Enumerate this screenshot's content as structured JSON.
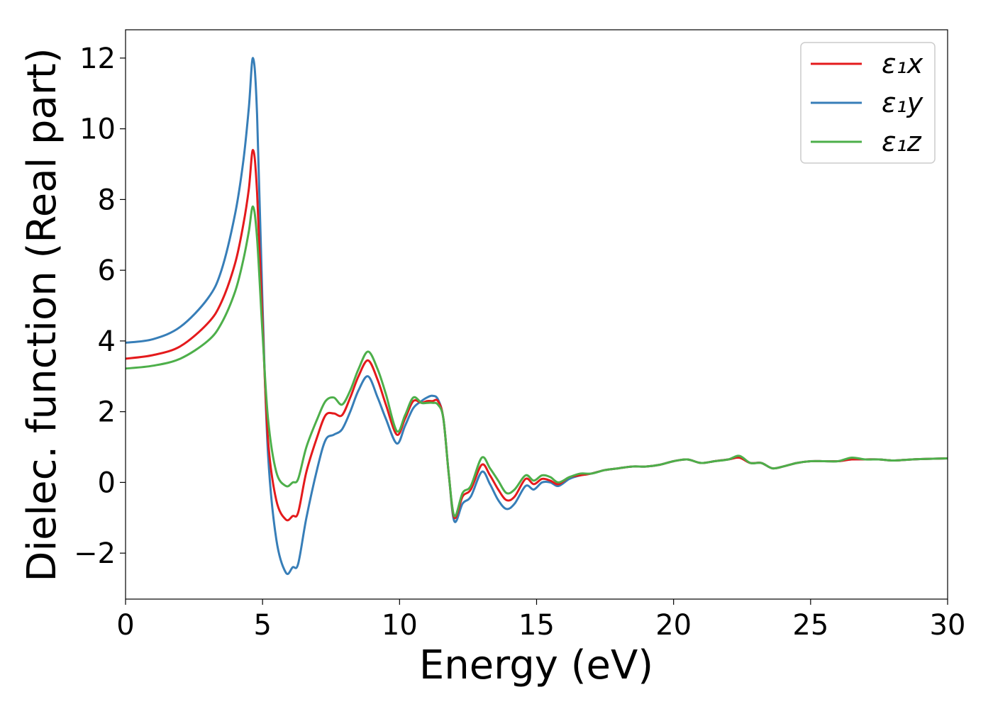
{
  "chart_data": {
    "type": "line",
    "xlabel": "Energy (eV)",
    "ylabel": "Dielec. function (Real part)",
    "xlim": [
      0,
      30
    ],
    "ylim": [
      -3.3,
      12.8
    ],
    "xticks": [
      0,
      5,
      10,
      15,
      20,
      25,
      30
    ],
    "xtick_labels": [
      "0",
      "5",
      "10",
      "15",
      "20",
      "25",
      "30"
    ],
    "yticks": [
      -2,
      0,
      2,
      4,
      6,
      8,
      10,
      12
    ],
    "ytick_labels": [
      "−2",
      "0",
      "2",
      "4",
      "6",
      "8",
      "10",
      "12"
    ],
    "grid": false,
    "legend_position": "top-right",
    "series": [
      {
        "name": "ε₁x",
        "color": "#e41a1c",
        "x": [
          0,
          1,
          2,
          3,
          3.5,
          4,
          4.3,
          4.5,
          4.65,
          4.8,
          5.0,
          5.2,
          5.5,
          5.85,
          6.1,
          6.3,
          6.6,
          7.0,
          7.3,
          7.6,
          7.9,
          8.2,
          8.5,
          8.85,
          9.2,
          9.5,
          9.9,
          10.2,
          10.5,
          10.8,
          11.0,
          11.2,
          11.4,
          11.6,
          11.8,
          12.0,
          12.3,
          12.6,
          13.0,
          13.3,
          13.6,
          13.9,
          14.2,
          14.6,
          14.9,
          15.2,
          15.5,
          15.8,
          16.2,
          16.6,
          17.0,
          17.5,
          18.0,
          18.5,
          19.0,
          19.5,
          20.0,
          20.5,
          21.0,
          21.5,
          22.0,
          22.4,
          22.8,
          23.2,
          23.6,
          24.0,
          24.5,
          25.0,
          25.5,
          26.0,
          26.5,
          27.0,
          27.5,
          28.0,
          28.5,
          29.0,
          30
        ],
        "y": [
          3.5,
          3.6,
          3.85,
          4.5,
          5.1,
          6.2,
          7.3,
          8.3,
          9.4,
          8.2,
          4.5,
          1.2,
          -0.5,
          -1.05,
          -0.95,
          -0.85,
          0.3,
          1.3,
          1.9,
          1.95,
          1.9,
          2.4,
          3.0,
          3.45,
          2.9,
          2.2,
          1.35,
          1.8,
          2.3,
          2.25,
          2.3,
          2.3,
          2.3,
          1.8,
          0.2,
          -1.0,
          -0.4,
          -0.2,
          0.5,
          0.2,
          -0.2,
          -0.5,
          -0.4,
          0.1,
          -0.05,
          0.1,
          0.05,
          -0.05,
          0.15,
          0.2,
          0.25,
          0.35,
          0.4,
          0.45,
          0.45,
          0.5,
          0.6,
          0.65,
          0.55,
          0.6,
          0.65,
          0.7,
          0.55,
          0.55,
          0.4,
          0.45,
          0.55,
          0.6,
          0.6,
          0.6,
          0.65,
          0.65,
          0.65,
          0.62,
          0.64,
          0.66,
          0.68
        ]
      },
      {
        "name": "ε₁y",
        "color": "#377eb8",
        "x": [
          0,
          1,
          2,
          3,
          3.5,
          4,
          4.3,
          4.5,
          4.65,
          4.8,
          5.0,
          5.2,
          5.5,
          5.85,
          6.1,
          6.3,
          6.6,
          7.0,
          7.3,
          7.6,
          7.9,
          8.2,
          8.5,
          8.85,
          9.2,
          9.5,
          9.9,
          10.2,
          10.5,
          10.8,
          11.0,
          11.2,
          11.4,
          11.6,
          11.8,
          12.0,
          12.3,
          12.6,
          13.0,
          13.3,
          13.6,
          13.9,
          14.2,
          14.6,
          14.9,
          15.2,
          15.5,
          15.8,
          16.2,
          16.6,
          17.0,
          17.5,
          18.0,
          18.5,
          19.0,
          19.5,
          20.0,
          20.5,
          21.0,
          21.5,
          22.0,
          22.4,
          22.8,
          23.2,
          23.6,
          24.0,
          24.5,
          25.0,
          25.5,
          26.0,
          26.5,
          27.0,
          27.5,
          28.0,
          28.5,
          29.0,
          30
        ],
        "y": [
          3.95,
          4.05,
          4.4,
          5.2,
          6.0,
          7.6,
          9.1,
          10.6,
          12.0,
          10.4,
          5.0,
          0.8,
          -1.6,
          -2.55,
          -2.4,
          -2.3,
          -1.0,
          0.4,
          1.2,
          1.35,
          1.5,
          2.0,
          2.6,
          3.0,
          2.4,
          1.8,
          1.1,
          1.6,
          2.1,
          2.3,
          2.4,
          2.45,
          2.35,
          1.8,
          0.2,
          -1.1,
          -0.6,
          -0.4,
          0.3,
          -0.05,
          -0.5,
          -0.75,
          -0.6,
          -0.1,
          -0.2,
          0.0,
          0.0,
          -0.1,
          0.1,
          0.2,
          0.25,
          0.35,
          0.4,
          0.45,
          0.45,
          0.5,
          0.6,
          0.65,
          0.55,
          0.6,
          0.65,
          0.7,
          0.55,
          0.55,
          0.4,
          0.45,
          0.55,
          0.6,
          0.6,
          0.6,
          0.65,
          0.65,
          0.65,
          0.62,
          0.64,
          0.66,
          0.68
        ]
      },
      {
        "name": "ε₁z",
        "color": "#4daf4a",
        "x": [
          0,
          1,
          2,
          3,
          3.5,
          4,
          4.3,
          4.5,
          4.65,
          4.8,
          5.0,
          5.2,
          5.5,
          5.85,
          6.1,
          6.3,
          6.6,
          7.0,
          7.3,
          7.6,
          7.9,
          8.2,
          8.5,
          8.85,
          9.2,
          9.5,
          9.9,
          10.2,
          10.5,
          10.8,
          11.0,
          11.2,
          11.4,
          11.6,
          11.8,
          12.0,
          12.3,
          12.6,
          13.0,
          13.3,
          13.6,
          13.9,
          14.2,
          14.6,
          14.9,
          15.2,
          15.5,
          15.8,
          16.2,
          16.6,
          17.0,
          17.5,
          18.0,
          18.5,
          19.0,
          19.5,
          20.0,
          20.5,
          21.0,
          21.5,
          22.0,
          22.4,
          22.8,
          23.2,
          23.6,
          24.0,
          24.5,
          25.0,
          25.5,
          26.0,
          26.5,
          27.0,
          27.5,
          28.0,
          28.5,
          29.0,
          30
        ],
        "y": [
          3.22,
          3.3,
          3.5,
          4.0,
          4.5,
          5.4,
          6.3,
          7.1,
          7.8,
          6.9,
          4.2,
          1.8,
          0.3,
          -0.1,
          0.0,
          0.1,
          1.0,
          1.8,
          2.3,
          2.4,
          2.2,
          2.6,
          3.2,
          3.7,
          3.2,
          2.5,
          1.45,
          1.9,
          2.4,
          2.25,
          2.25,
          2.25,
          2.2,
          1.8,
          0.2,
          -0.95,
          -0.3,
          -0.1,
          0.7,
          0.4,
          0.05,
          -0.3,
          -0.2,
          0.2,
          0.05,
          0.2,
          0.15,
          0.0,
          0.15,
          0.25,
          0.25,
          0.35,
          0.4,
          0.45,
          0.45,
          0.5,
          0.6,
          0.65,
          0.55,
          0.6,
          0.65,
          0.75,
          0.55,
          0.55,
          0.4,
          0.45,
          0.55,
          0.6,
          0.6,
          0.6,
          0.7,
          0.65,
          0.65,
          0.62,
          0.64,
          0.66,
          0.68
        ]
      }
    ]
  }
}
